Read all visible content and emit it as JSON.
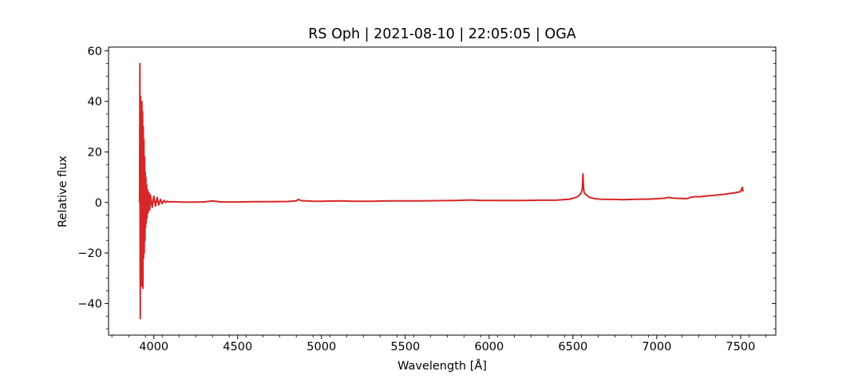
{
  "chart_data": {
    "type": "line",
    "title": "RS Oph | 2021-08-10 | 22:05:05 | OGA",
    "xlabel": "Wavelength [Å]",
    "ylabel": "Relative flux",
    "xlim": [
      3730,
      7710
    ],
    "ylim": [
      -52.5,
      61.5
    ],
    "x_ticks": [
      4000,
      4500,
      5000,
      5500,
      6000,
      6500,
      7000,
      7500
    ],
    "x_tick_labels": [
      "4000",
      "4500",
      "5000",
      "5500",
      "6000",
      "6500",
      "7000",
      "7500"
    ],
    "y_ticks": [
      -40,
      -20,
      0,
      20,
      40,
      60
    ],
    "y_tick_labels": [
      "−40",
      "−20",
      "0",
      "20",
      "40",
      "60"
    ],
    "grid": false,
    "series": [
      {
        "color": "#d62728",
        "x": [
          3915,
          3917,
          3919,
          3921,
          3923,
          3925,
          3927,
          3929,
          3931,
          3933,
          3935,
          3937,
          3939,
          3941,
          3943,
          3945,
          3947,
          3949,
          3951,
          3953,
          3955,
          3957,
          3960,
          3963,
          3966,
          3970,
          3975,
          3980,
          3990,
          4000,
          4010,
          4020,
          4030,
          4040,
          4050,
          4060,
          4070,
          4080,
          4090,
          4100,
          4150,
          4200,
          4300,
          4350,
          4400,
          4500,
          4600,
          4700,
          4800,
          4850,
          4861,
          4880,
          4950,
          5000,
          5100,
          5200,
          5300,
          5400,
          5500,
          5600,
          5700,
          5800,
          5890,
          5950,
          6000,
          6100,
          6200,
          6300,
          6400,
          6480,
          6520,
          6540,
          6550,
          6556,
          6560,
          6563,
          6566,
          6570,
          6580,
          6600,
          6630,
          6660,
          6700,
          6750,
          6800,
          6850,
          6900,
          6950,
          7000,
          7050,
          7070,
          7100,
          7150,
          7180,
          7200,
          7230,
          7260,
          7300,
          7350,
          7400,
          7450,
          7480,
          7500,
          7510,
          7515
        ],
        "y": [
          0,
          55,
          -46,
          42,
          -30,
          38,
          -33,
          40,
          -28,
          36,
          -34,
          30,
          -22,
          25,
          -20,
          18,
          -15,
          12,
          -10,
          10,
          -8,
          7,
          -6,
          5,
          -4,
          4,
          -3,
          3,
          -2,
          2.5,
          -1.5,
          2,
          -1,
          1.2,
          -0.5,
          0.8,
          0,
          0.5,
          0.2,
          0.3,
          0.2,
          0.1,
          0.2,
          0.6,
          0.2,
          0.2,
          0.3,
          0.3,
          0.4,
          0.6,
          1.2,
          0.7,
          0.5,
          0.5,
          0.6,
          0.5,
          0.5,
          0.6,
          0.6,
          0.6,
          0.7,
          0.8,
          1.0,
          0.8,
          0.8,
          0.8,
          0.8,
          0.9,
          0.9,
          1.3,
          2.0,
          3.0,
          3.8,
          5.5,
          11.3,
          6.0,
          4.2,
          3.6,
          3.0,
          2.0,
          1.5,
          1.3,
          1.2,
          1.2,
          1.1,
          1.2,
          1.3,
          1.3,
          1.5,
          1.7,
          2.0,
          1.7,
          1.6,
          1.5,
          2.0,
          2.3,
          2.3,
          2.6,
          2.9,
          3.2,
          3.7,
          4.0,
          4.3,
          6.0,
          4.3
        ]
      }
    ]
  }
}
